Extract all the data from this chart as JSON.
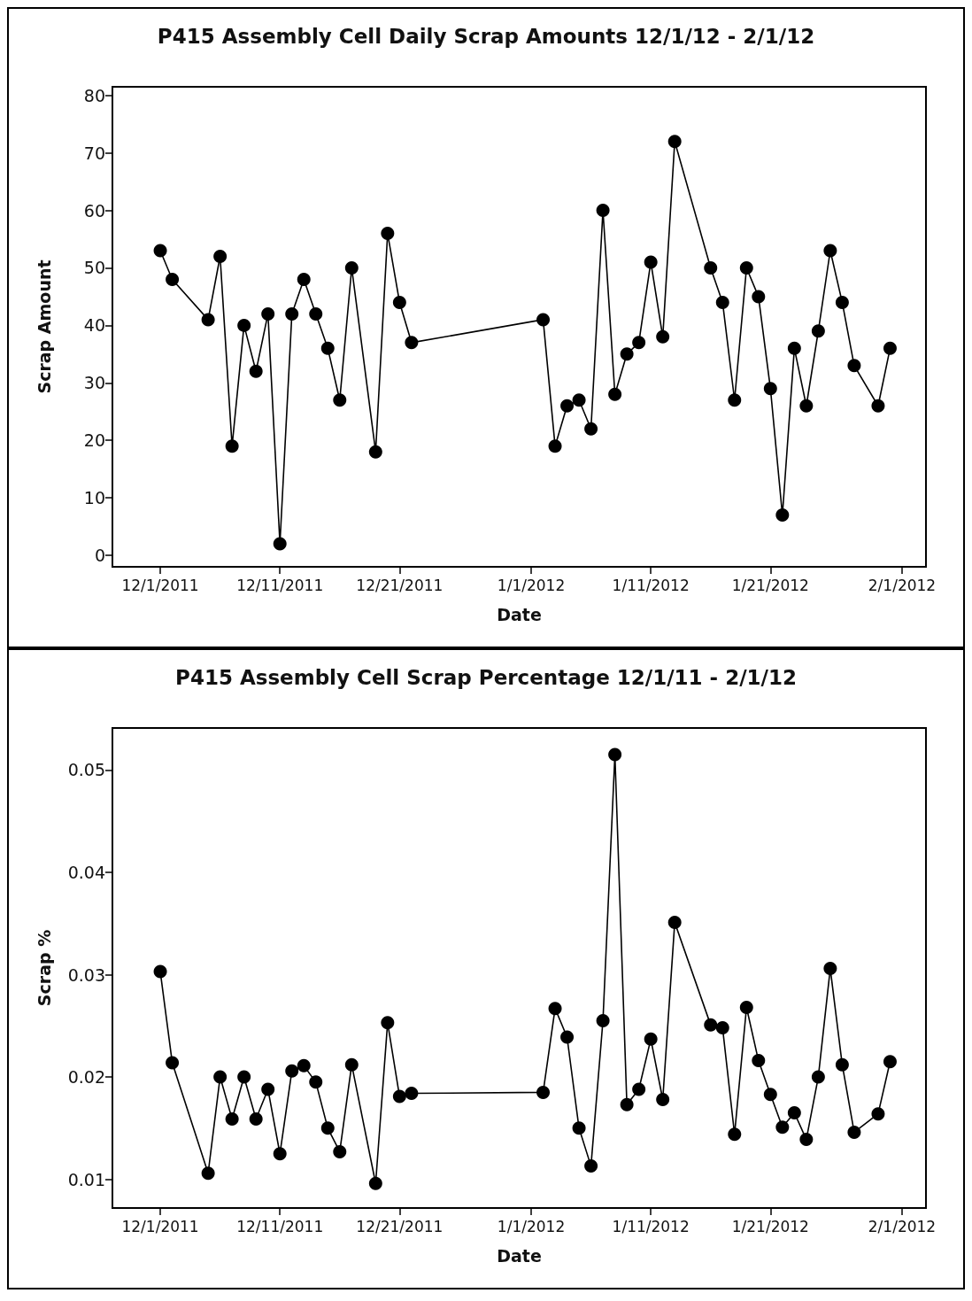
{
  "chart_data": [
    {
      "type": "line",
      "title": "P415 Assembly Cell Daily Scrap Amounts 12/1/12 - 2/1/12",
      "xlabel": "Date",
      "ylabel": "Scrap Amount",
      "x": [
        "2011-12-01",
        "2011-12-02",
        "2011-12-05",
        "2011-12-06",
        "2011-12-07",
        "2011-12-08",
        "2011-12-09",
        "2011-12-10",
        "2011-12-11",
        "2011-12-12",
        "2011-12-13",
        "2011-12-14",
        "2011-12-15",
        "2011-12-16",
        "2011-12-17",
        "2011-12-19",
        "2011-12-20",
        "2011-12-21",
        "2011-12-22",
        "2012-01-02",
        "2012-01-03",
        "2012-01-04",
        "2012-01-05",
        "2012-01-06",
        "2012-01-07",
        "2012-01-08",
        "2012-01-09",
        "2012-01-10",
        "2012-01-11",
        "2012-01-12",
        "2012-01-13",
        "2012-01-16",
        "2012-01-17",
        "2012-01-18",
        "2012-01-19",
        "2012-01-20",
        "2012-01-21",
        "2012-01-22",
        "2012-01-23",
        "2012-01-24",
        "2012-01-25",
        "2012-01-26",
        "2012-01-27",
        "2012-01-28",
        "2012-01-30",
        "2012-01-31"
      ],
      "series": [
        {
          "color": "#000000",
          "values": [
            53,
            48,
            41,
            52,
            19,
            40,
            32,
            42,
            2,
            42,
            48,
            42,
            36,
            27,
            50,
            18,
            56,
            44,
            37,
            41,
            19,
            26,
            27,
            22,
            60,
            28,
            35,
            37,
            51,
            38,
            72,
            50,
            44,
            27,
            50,
            45,
            29,
            7,
            36,
            26,
            39,
            53,
            44,
            33,
            26,
            36
          ]
        }
      ],
      "xlim": [
        "2011-11-27",
        "2012-02-03"
      ],
      "xticks": [
        {
          "value": "2011-12-01",
          "label": "12/1/2011"
        },
        {
          "value": "2011-12-11",
          "label": "12/11/2011"
        },
        {
          "value": "2011-12-21",
          "label": "12/21/2011"
        },
        {
          "value": "2012-01-01",
          "label": "1/1/2012"
        },
        {
          "value": "2012-01-11",
          "label": "1/11/2012"
        },
        {
          "value": "2012-01-21",
          "label": "1/21/2012"
        },
        {
          "value": "2012-02-01",
          "label": "2/1/2012"
        }
      ],
      "ylim": [
        -2,
        81.5
      ],
      "yticks": [
        0,
        10,
        20,
        30,
        40,
        50,
        60,
        70,
        80
      ],
      "grid": false,
      "marker": "circle",
      "line_style": "solid"
    },
    {
      "type": "line",
      "title": "P415 Assembly Cell Scrap Percentage 12/1/11 - 2/1/12",
      "xlabel": "Date",
      "ylabel": "Scrap %",
      "x": [
        "2011-12-01",
        "2011-12-02",
        "2011-12-05",
        "2011-12-06",
        "2011-12-07",
        "2011-12-08",
        "2011-12-09",
        "2011-12-10",
        "2011-12-11",
        "2011-12-12",
        "2011-12-13",
        "2011-12-14",
        "2011-12-15",
        "2011-12-16",
        "2011-12-17",
        "2011-12-19",
        "2011-12-20",
        "2011-12-21",
        "2011-12-22",
        "2012-01-02",
        "2012-01-03",
        "2012-01-04",
        "2012-01-05",
        "2012-01-06",
        "2012-01-07",
        "2012-01-08",
        "2012-01-09",
        "2012-01-10",
        "2012-01-11",
        "2012-01-12",
        "2012-01-13",
        "2012-01-16",
        "2012-01-17",
        "2012-01-18",
        "2012-01-19",
        "2012-01-20",
        "2012-01-21",
        "2012-01-22",
        "2012-01-23",
        "2012-01-24",
        "2012-01-25",
        "2012-01-26",
        "2012-01-27",
        "2012-01-28",
        "2012-01-30",
        "2012-01-31"
      ],
      "series": [
        {
          "color": "#000000",
          "values": [
            0.0303,
            0.0214,
            0.0106,
            0.02,
            0.0159,
            0.02,
            0.0159,
            0.0188,
            0.0125,
            0.0206,
            0.0211,
            0.0195,
            0.015,
            0.0127,
            0.0212,
            0.0096,
            0.0253,
            0.0181,
            0.0184,
            0.0185,
            0.0267,
            0.0239,
            0.015,
            0.0113,
            0.0255,
            0.0515,
            0.0173,
            0.0188,
            0.0237,
            0.0178,
            0.0351,
            0.0251,
            0.0248,
            0.0144,
            0.0268,
            0.0216,
            0.0183,
            0.0151,
            0.0165,
            0.0139,
            0.02,
            0.0306,
            0.0212,
            0.0146,
            0.0164,
            0.0215
          ]
        }
      ],
      "xlim": [
        "2011-11-27",
        "2012-02-03"
      ],
      "xticks": [
        {
          "value": "2011-12-01",
          "label": "12/1/2011"
        },
        {
          "value": "2011-12-11",
          "label": "12/11/2011"
        },
        {
          "value": "2011-12-21",
          "label": "12/21/2011"
        },
        {
          "value": "2012-01-01",
          "label": "1/1/2012"
        },
        {
          "value": "2012-01-11",
          "label": "1/11/2012"
        },
        {
          "value": "2012-01-21",
          "label": "1/21/2012"
        },
        {
          "value": "2012-02-01",
          "label": "2/1/2012"
        }
      ],
      "ylim": [
        0.0072,
        0.0541
      ],
      "yticks": [
        0.01,
        0.02,
        0.03,
        0.04,
        0.05
      ],
      "grid": false,
      "marker": "circle",
      "line_style": "solid"
    }
  ]
}
